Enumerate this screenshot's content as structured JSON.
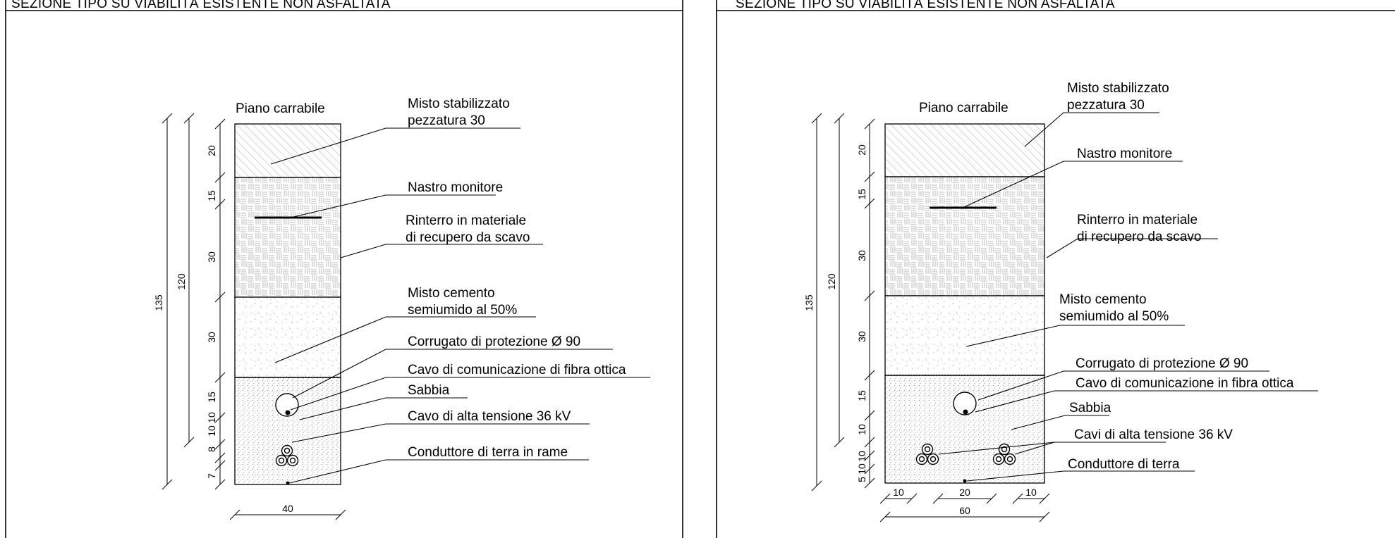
{
  "panels": [
    {
      "title": "SEZIONE TIPO SU VIABILITÀ ESISTENTE NON ASFALTATA",
      "surface_label": "Piano carrabile",
      "labels": {
        "aggregate": [
          "Misto stabilizzato",
          "pezzatura 30"
        ],
        "tape": [
          "Nastro monitore"
        ],
        "backfill": [
          "Rinterro in materiale",
          "di recupero da scavo"
        ],
        "cement": [
          "Misto cemento",
          "semiumido al 50%"
        ],
        "conduit": [
          "Corrugato di protezione Ø 90"
        ],
        "fiber": [
          "Cavo di comunicazione di fibra ottica"
        ],
        "sand": [
          "Sabbia"
        ],
        "hv": [
          "Cavo di alta tensione 36 kV"
        ],
        "ground": [
          "Conduttore di terra in rame"
        ]
      },
      "layer_depths": [
        "20",
        "15",
        "30",
        "30",
        "15",
        "10",
        "10",
        "8",
        "7"
      ],
      "total_depth": "135",
      "cable_depth": "120",
      "widths": [
        "40"
      ]
    },
    {
      "title": "SEZIONE TIPO SU VIABILITÀ ESISTENTE NON ASFALTATA",
      "surface_label": "Piano carrabile",
      "labels": {
        "aggregate": [
          "Misto stabilizzato",
          "pezzatura 30"
        ],
        "tape": [
          "Nastro monitore"
        ],
        "backfill": [
          "Rinterro in materiale",
          "di recupero da scavo"
        ],
        "cement": [
          "Misto cemento",
          "semiumido al 50%"
        ],
        "conduit": [
          "Corrugato di protezione Ø 90"
        ],
        "fiber": [
          "Cavo di comunicazione in fibra ottica"
        ],
        "sand": [
          "Sabbia"
        ],
        "hv": [
          "Cavi di alta tensione 36 kV"
        ],
        "ground": [
          "Conduttore di terra"
        ]
      },
      "layer_depths": [
        "20",
        "15",
        "30",
        "30",
        "15",
        "10",
        "10",
        "10",
        "5"
      ],
      "total_depth": "135",
      "cable_depth": "120",
      "widths": [
        "10",
        "20",
        "10",
        "60"
      ]
    }
  ]
}
